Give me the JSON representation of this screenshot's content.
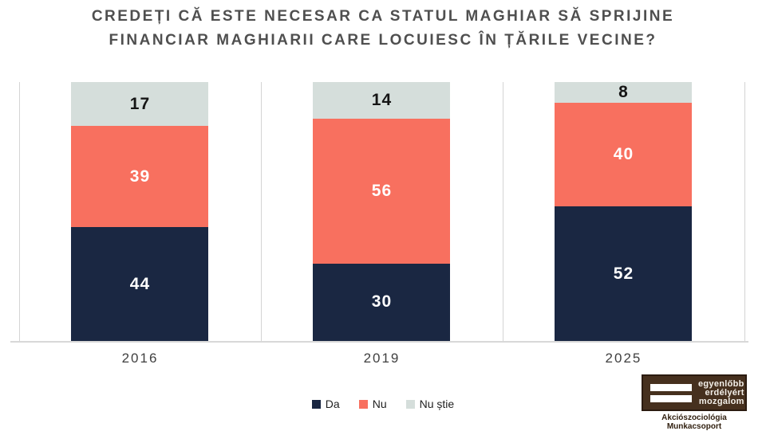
{
  "title": {
    "line1": "CREDEȚI CĂ ESTE NECESAR CA STATUL MAGHIAR SĂ SPRIJINE",
    "line2": "FINANCIAR MAGHIARII CARE LOCUIESC ÎN ȚĂRILE VECINE?"
  },
  "chart_data": {
    "type": "bar",
    "stacked": true,
    "orientation": "vertical",
    "categories": [
      "2016",
      "2019",
      "2025"
    ],
    "series": [
      {
        "name": "Da",
        "color": "#1a2742",
        "label_color": "#ffffff",
        "values": [
          44,
          30,
          52
        ]
      },
      {
        "name": "Nu",
        "color": "#f8705f",
        "label_color": "#ffffff",
        "values": [
          39,
          56,
          40
        ]
      },
      {
        "name": "Nu știe",
        "color": "#d5dedb",
        "label_color": "#151515",
        "values": [
          17,
          14,
          8
        ]
      }
    ],
    "ylim": [
      0,
      100
    ],
    "grid": "vertical-category-boundaries",
    "legend_position": "bottom",
    "data_labels": "inside-center"
  },
  "legend": {
    "items": [
      {
        "label": "Da"
      },
      {
        "label": "Nu"
      },
      {
        "label": "Nu știe"
      }
    ]
  },
  "logo": {
    "lines": [
      "egyenlőbb",
      "erdélyért",
      "mozgalom"
    ],
    "caption": "Akciószociológia Munkacsoport",
    "box_color": "#46301e"
  },
  "colors": {
    "background": "#ffffff",
    "title_text": "#4f4f4f",
    "axis_labels": "#3f3f3f",
    "gridline": "#d4d4d4"
  }
}
